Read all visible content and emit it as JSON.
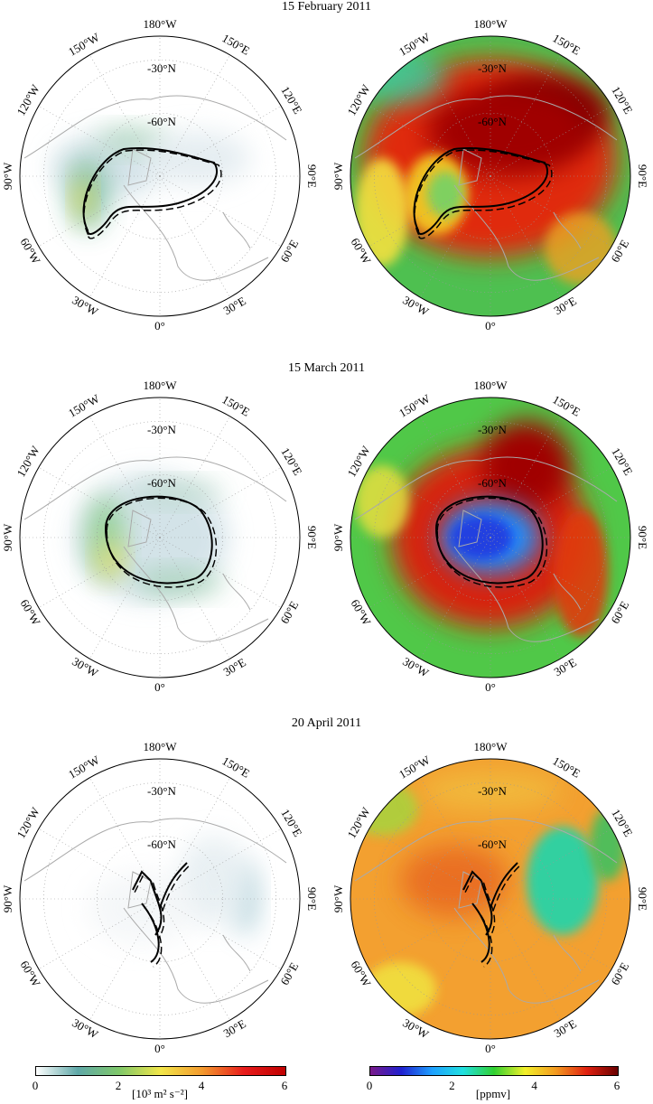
{
  "rows": [
    {
      "title": "15 February 2011"
    },
    {
      "title": "15 March 2011"
    },
    {
      "title": "20 April 2011"
    }
  ],
  "map_labels": {
    "lon": [
      {
        "lon": 180,
        "text": "180°W"
      },
      {
        "lon": 150,
        "text": "150°E"
      },
      {
        "lon": 120,
        "text": "120°E"
      },
      {
        "lon": 90,
        "text": "90°E"
      },
      {
        "lon": 60,
        "text": "60°E"
      },
      {
        "lon": 30,
        "text": "30°E"
      },
      {
        "lon": 0,
        "text": "0°"
      },
      {
        "lon": -30,
        "text": "30°W"
      },
      {
        "lon": -60,
        "text": "60°W"
      },
      {
        "lon": -90,
        "text": "90°W"
      },
      {
        "lon": -120,
        "text": "120°W"
      },
      {
        "lon": -150,
        "text": "150°W"
      }
    ],
    "lat": [
      {
        "lat": 30,
        "text": "-30°N"
      },
      {
        "lat": 60,
        "text": "-60°N"
      }
    ]
  },
  "colorbars": [
    {
      "ticks": [
        "0",
        "2",
        "4",
        "6"
      ],
      "unit": "[10³ m² s⁻²]",
      "colors": [
        "#ffffff",
        "#5fa8a8",
        "#7fc86a",
        "#f2e64a",
        "#f39a2e",
        "#e81c1c",
        "#c00000"
      ]
    },
    {
      "ticks": [
        "0",
        "2",
        "4",
        "6"
      ],
      "unit": "[ppmv]",
      "colors": [
        "#7a1a8a",
        "#2020d0",
        "#1ea0ff",
        "#20e0e0",
        "#30d030",
        "#f2f02a",
        "#f39a20",
        "#e02010",
        "#6a0000"
      ]
    }
  ]
}
